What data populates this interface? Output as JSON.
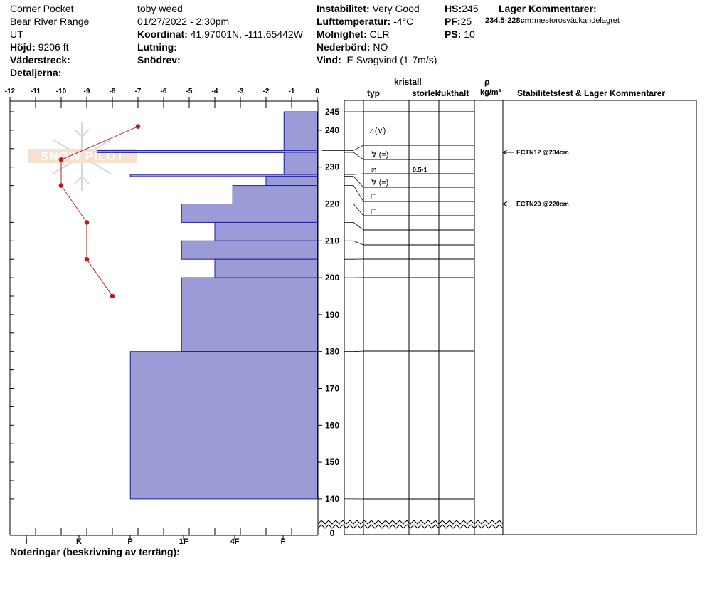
{
  "header": {
    "location": "Corner Pocket",
    "range": "Bear River Range",
    "state": "UT",
    "elevation_label": "Höjd:",
    "elevation_value": "9206 ft",
    "aspect_label": "Väderstreck:",
    "details_label": "Detaljerna:",
    "observer": "toby weed",
    "datetime": "01/27/2022 - 2:30pm",
    "coord_label": "Koordinat:",
    "coord_value": "41.97001N, -111.65442W",
    "slope_label": "Lutning:",
    "snowdrift_label": "Snödrev:",
    "instability_label": "Instabilitet:",
    "instability_value": "Very Good",
    "airtemp_label": "Lufttemperatur:",
    "airtemp_value": "-4°C",
    "cloud_label": "Molnighet:",
    "cloud_value": "CLR",
    "precip_label": "Nederbörd:",
    "precip_value": "NO",
    "wind_label": "Vind:",
    "wind_value": "E Svagvind (1-7m/s)",
    "hs_label": "HS:",
    "hs_value": "245",
    "pf_label": "PF:",
    "pf_value": "25",
    "ps_label": "PS:",
    "ps_value": "10",
    "layer_comments_label": "Lager Kommentarer:",
    "layer_comment_depth": "234.5-228cm:",
    "layer_comment_text": "mestorosväckandelagret"
  },
  "columns": {
    "crystal": "kristall",
    "type": "typ",
    "size": "storlek",
    "moisture": "fukthalt",
    "rho": "ρ",
    "density_unit": "kg/m³",
    "stability": "Stabilitetstest & Lager Kommentarer"
  },
  "notes_label": "Noteringar (beskrivning av terräng):",
  "watermark": "SNOW PILOT",
  "chart_data": {
    "type": "snow-profile",
    "temperature_axis": {
      "ticks": [
        -12,
        -11,
        -10,
        -9,
        -8,
        -7,
        -6,
        -5,
        -4,
        -3,
        -2,
        -1,
        0
      ]
    },
    "hardness_axis": {
      "ticks": [
        "I",
        "K",
        "P",
        "1F",
        "4F",
        "F"
      ]
    },
    "height_axis": {
      "ticks": [
        0,
        140,
        150,
        160,
        170,
        180,
        190,
        200,
        210,
        220,
        230,
        240,
        245
      ],
      "break_below": 140
    },
    "temperature_profile": [
      {
        "height": 241,
        "temp": -7.0
      },
      {
        "height": 232,
        "temp": -10.0
      },
      {
        "height": 225,
        "temp": -10.0
      },
      {
        "height": 215,
        "temp": -9.0
      },
      {
        "height": 205,
        "temp": -9.0
      },
      {
        "height": 195,
        "temp": -8.0
      }
    ],
    "layers": [
      {
        "top": 245,
        "bottom": 234.5,
        "hardness": 1.3
      },
      {
        "top": 234.5,
        "bottom": 234,
        "hardness": 8.6
      },
      {
        "top": 234,
        "bottom": 228,
        "hardness": 1.3
      },
      {
        "top": 228,
        "bottom": 227.5,
        "hardness": 7.3
      },
      {
        "top": 227.5,
        "bottom": 225,
        "hardness": 2.0
      },
      {
        "top": 225,
        "bottom": 220,
        "hardness": 3.3
      },
      {
        "top": 220,
        "bottom": 215,
        "hardness": 5.3
      },
      {
        "top": 215,
        "bottom": 210,
        "hardness": 4.0
      },
      {
        "top": 210,
        "bottom": 205,
        "hardness": 5.3
      },
      {
        "top": 205,
        "bottom": 200,
        "hardness": 4.0
      },
      {
        "top": 200,
        "bottom": 180,
        "hardness": 5.3
      },
      {
        "top": 180,
        "bottom": 140,
        "hardness": 7.3
      }
    ],
    "crystal_rows": [
      {
        "height": 240,
        "type": "⁄ (∨)",
        "size": ""
      },
      {
        "height": 233.5,
        "type": "∀ (=)",
        "size": ""
      },
      {
        "height": 229.5,
        "type": "⧄",
        "size": "0.5-1"
      },
      {
        "height": 226,
        "type": "∀ (=)",
        "size": ""
      },
      {
        "height": 222,
        "type": "□",
        "size": ""
      },
      {
        "height": 218,
        "type": "□",
        "size": ""
      }
    ],
    "stability_tests": [
      {
        "height": 234,
        "label": "ECTN12 @234cm"
      },
      {
        "height": 220,
        "label": "ECTN20 @220cm"
      }
    ]
  }
}
